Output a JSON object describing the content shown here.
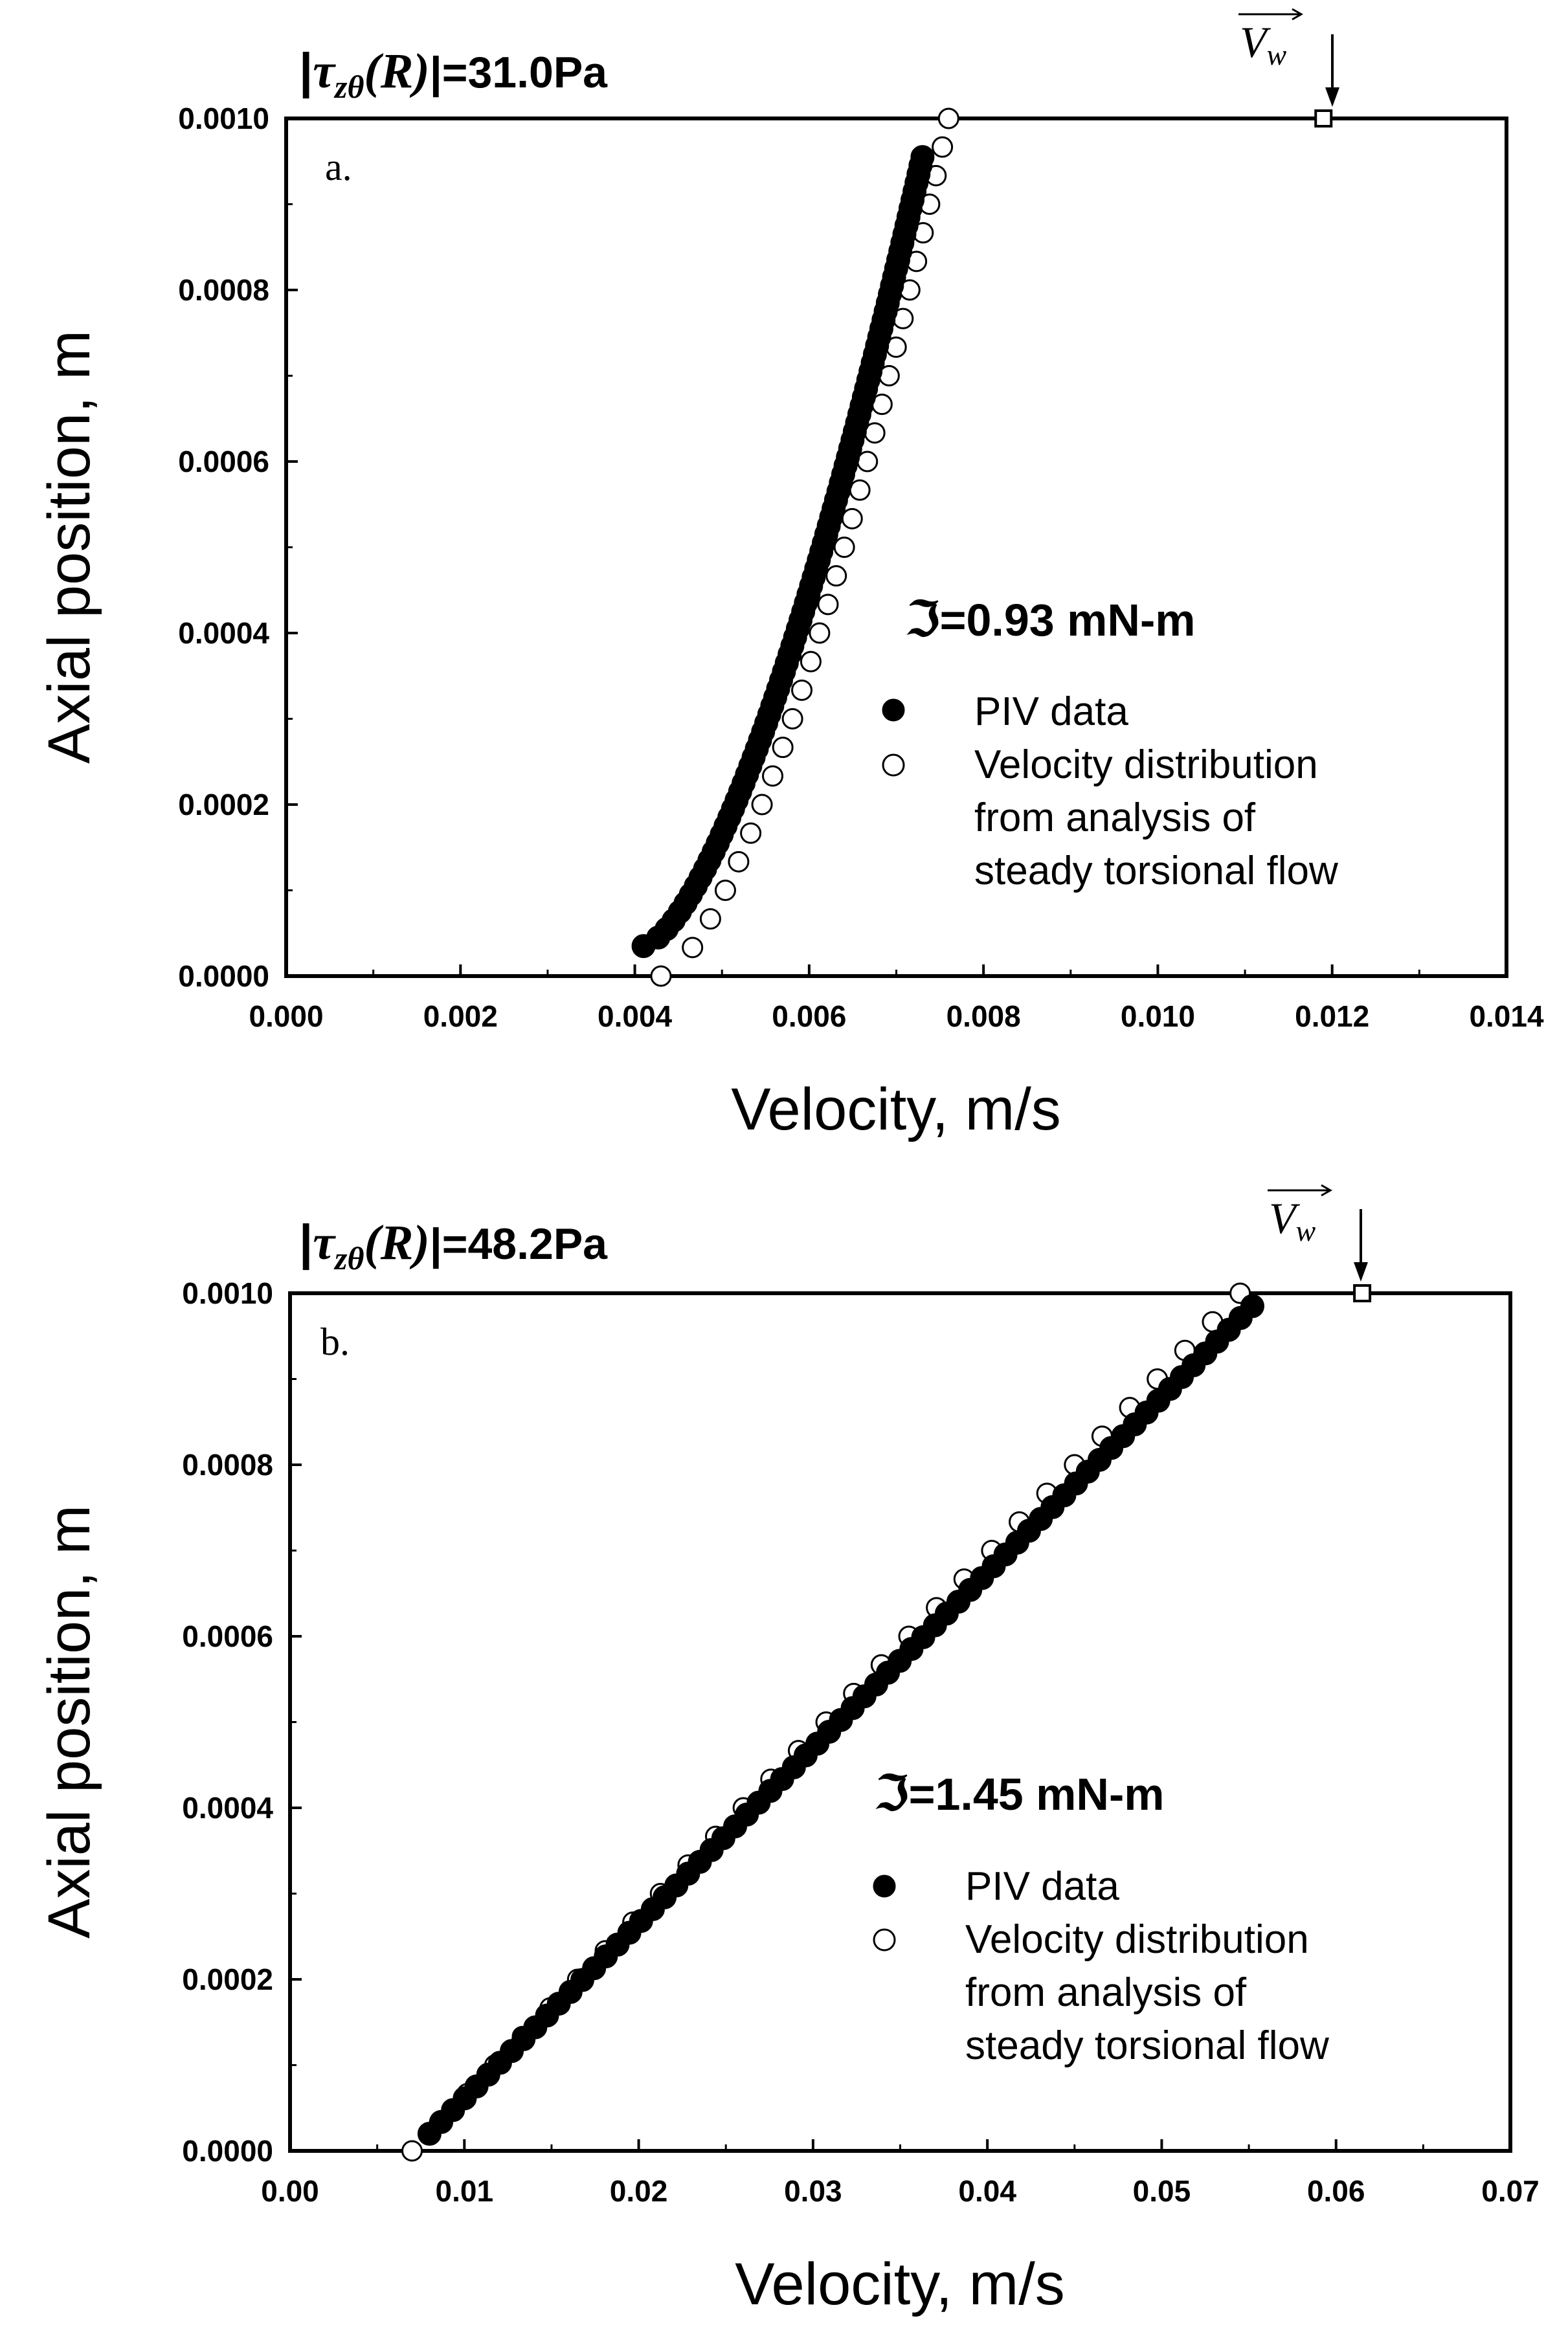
{
  "chart_data": [
    {
      "type": "scatter",
      "panel_label": "a.",
      "title": {
        "prefix": "|",
        "symbol": "τ",
        "subscript": "zθ",
        "argument": "(R)",
        "suffix": "|=31.0Pa"
      },
      "torque_label": {
        "symbol": "ℑ",
        "text": "=0.93 mN-m"
      },
      "xlabel": "Velocity, m/s",
      "ylabel": "Axial position, m",
      "xlim": [
        0,
        0.014
      ],
      "ylim": [
        0,
        0.001
      ],
      "xticks": [
        "0.000",
        "0.002",
        "0.004",
        "0.006",
        "0.008",
        "0.010",
        "0.012",
        "0.014"
      ],
      "yticks": [
        "0.0000",
        "0.0002",
        "0.0004",
        "0.0006",
        "0.0008",
        "0.0010"
      ],
      "wall_velocity": {
        "label": "V",
        "subscript": "w",
        "x": 0.0119,
        "y": 0.001
      },
      "legend": {
        "placement": "center-right",
        "entries": [
          "PIV data",
          "Velocity distribution",
          "from analysis of",
          "steady torsional flow"
        ]
      },
      "series": [
        {
          "name": "PIV data",
          "marker": "filled-circle",
          "x_start": 0.0041,
          "x_end": 0.0073,
          "y_start": 3.5e-05,
          "y_end": 0.000955,
          "count": 93,
          "curve": "concave",
          "curve_power": 0.65
        },
        {
          "name": "Velocity distribution from analysis of steady torsional flow",
          "marker": "open-circle",
          "x_start": 0.0043,
          "x_end": 0.0076,
          "y_start": 0.0,
          "y_end": 0.001,
          "count": 31,
          "curve": "concave",
          "curve_power": 0.65
        }
      ]
    },
    {
      "type": "scatter",
      "panel_label": "b.",
      "title": {
        "prefix": "|",
        "symbol": "τ",
        "subscript": "zθ",
        "argument": "(R)",
        "suffix": "|=48.2Pa"
      },
      "torque_label": {
        "symbol": "ℑ",
        "text": "=1.45 mN-m"
      },
      "xlabel": "Velocity, m/s",
      "ylabel": "Axial position, m",
      "xlim": [
        0,
        0.07
      ],
      "ylim": [
        0,
        0.001
      ],
      "xticks": [
        "0.00",
        "0.01",
        "0.02",
        "0.03",
        "0.04",
        "0.05",
        "0.06",
        "0.07"
      ],
      "yticks": [
        "0.0000",
        "0.0002",
        "0.0004",
        "0.0006",
        "0.0008",
        "0.0010"
      ],
      "wall_velocity": {
        "label": "V",
        "subscript": "w",
        "x": 0.0615,
        "y": 0.001
      },
      "legend": {
        "placement": "center-right",
        "entries": [
          "PIV data",
          "Velocity distribution",
          "from analysis of",
          "steady torsional flow"
        ]
      },
      "series": [
        {
          "name": "PIV data",
          "marker": "filled-circle",
          "x_start": 0.008,
          "x_end": 0.0552,
          "y_start": 2e-05,
          "y_end": 0.000985,
          "count": 71,
          "curve": "linear",
          "curve_power": 1
        },
        {
          "name": "Velocity distribution from analysis of steady torsional flow",
          "marker": "open-circle",
          "x_start": 0.007,
          "x_end": 0.0545,
          "y_start": 0.0,
          "y_end": 0.001,
          "count": 31,
          "curve": "linear",
          "curve_power": 1
        }
      ]
    }
  ]
}
